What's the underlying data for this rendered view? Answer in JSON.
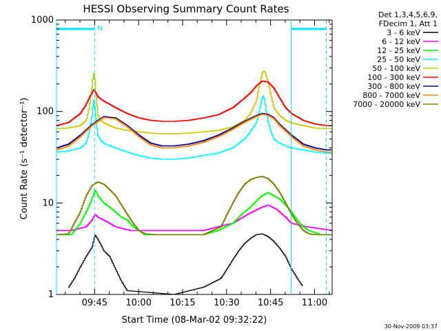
{
  "chart_data": {
    "type": "line",
    "title": "HESSI Observing Summary Count Rates",
    "xlabel": "Start Time (08-Mar-02 09:32:22)",
    "ylabel": "Count Rate (s⁻¹ detector⁻¹)",
    "yscale": "log",
    "ylim": [
      1,
      1000
    ],
    "xlim_minutes": [
      0,
      94
    ],
    "x_ticks": [
      {
        "t": 13,
        "label": "09:45"
      },
      {
        "t": 28,
        "label": "10:00"
      },
      {
        "t": 43,
        "label": "10:15"
      },
      {
        "t": 58,
        "label": "10:30"
      },
      {
        "t": 73,
        "label": "10:45"
      },
      {
        "t": 88,
        "label": "11:00"
      }
    ],
    "y_ticks": [
      {
        "v": 1,
        "label": "1"
      },
      {
        "v": 10,
        "label": "10"
      },
      {
        "v": 100,
        "label": "100"
      },
      {
        "v": 1000,
        "label": "1000"
      }
    ],
    "legend_position": "top-right, outside plot",
    "legend_header": [
      "Det 1,3,4,5,6,9,",
      "FDecim 1, Att 1"
    ],
    "series": [
      {
        "name": "3 - 6 keV",
        "color": "#000000",
        "x": [
          4,
          6,
          8,
          10,
          12,
          13,
          14,
          15,
          16,
          18,
          20,
          22,
          24,
          40,
          50,
          56,
          58,
          60,
          62,
          64,
          66,
          68,
          70,
          72,
          74,
          76,
          78,
          80,
          82,
          84
        ],
        "y": [
          1.2,
          1.5,
          2,
          2.6,
          3.3,
          4.5,
          4,
          3.5,
          3,
          2.6,
          1.9,
          1.4,
          1.1,
          1,
          1.2,
          1.5,
          1.9,
          2.4,
          3,
          3.6,
          4.1,
          4.5,
          4.6,
          4.3,
          3.8,
          3.2,
          2.6,
          1.9,
          1.5,
          1.2
        ]
      },
      {
        "name": "6 - 12 keV",
        "color": "#ff00ff",
        "x": [
          0,
          5,
          10,
          12,
          13,
          14,
          16,
          18,
          20,
          25,
          30,
          40,
          50,
          55,
          60,
          65,
          70,
          72,
          75,
          78,
          80,
          85,
          94
        ],
        "y": [
          5,
          5,
          5.5,
          6.5,
          7.5,
          7,
          6.5,
          6,
          5.5,
          5,
          5,
          5,
          5,
          5.5,
          6,
          7.5,
          9,
          9.5,
          8.5,
          7,
          6,
          5.5,
          5
        ]
      },
      {
        "name": "12 - 25 keV",
        "color": "#00ff00",
        "x": [
          0,
          5,
          8,
          10,
          12,
          13,
          14,
          16,
          18,
          20,
          22,
          24,
          26,
          28,
          30,
          40,
          50,
          55,
          60,
          63,
          66,
          68,
          70,
          72,
          74,
          76,
          78,
          80,
          82,
          84,
          86,
          90,
          94
        ],
        "y": [
          4.5,
          4.5,
          6,
          8,
          11,
          14,
          12,
          10,
          9,
          8,
          7,
          6.5,
          5.5,
          5,
          4.5,
          4.5,
          4.5,
          5,
          6,
          7.5,
          9,
          10.5,
          12,
          13,
          12,
          11,
          9.5,
          8,
          6.5,
          5.5,
          5,
          4.5,
          4.5
        ]
      },
      {
        "name": "25 - 50 keV",
        "color": "#00ffff",
        "x": [
          0,
          4,
          8,
          10,
          11,
          12,
          12.5,
          13,
          13.5,
          14,
          15,
          16,
          18,
          20,
          24,
          28,
          32,
          36,
          40,
          45,
          50,
          55,
          60,
          64,
          66,
          68,
          69,
          70,
          70.5,
          71,
          72,
          73,
          74,
          76,
          78,
          80,
          84,
          88,
          92,
          94
        ],
        "y": [
          36,
          37,
          40,
          45,
          60,
          90,
          140,
          110,
          70,
          55,
          48,
          45,
          42,
          40,
          36,
          33,
          31,
          30,
          30,
          31,
          33,
          35,
          40,
          50,
          60,
          75,
          100,
          140,
          150,
          120,
          80,
          60,
          50,
          45,
          42,
          40,
          38,
          36,
          35,
          35
        ]
      },
      {
        "name": "50 - 100 keV",
        "color": "#cccc00",
        "x": [
          0,
          4,
          8,
          10,
          11,
          12,
          12.5,
          13,
          13.5,
          14,
          15,
          16,
          18,
          20,
          24,
          28,
          32,
          36,
          40,
          45,
          50,
          55,
          60,
          64,
          66,
          68,
          69,
          70,
          70.5,
          71,
          72,
          73,
          74,
          76,
          78,
          80,
          84,
          88,
          92,
          94
        ],
        "y": [
          65,
          66,
          70,
          80,
          110,
          190,
          270,
          220,
          130,
          90,
          80,
          75,
          70,
          66,
          62,
          60,
          58,
          57,
          57,
          58,
          60,
          62,
          68,
          80,
          95,
          130,
          190,
          260,
          280,
          270,
          210,
          150,
          110,
          90,
          80,
          75,
          70,
          66,
          65,
          65
        ]
      },
      {
        "name": "100 - 300 keV",
        "color": "#ff0000",
        "x": [
          0,
          4,
          8,
          10,
          11,
          12,
          12.5,
          13,
          14,
          16,
          18,
          20,
          24,
          28,
          32,
          36,
          40,
          45,
          50,
          55,
          60,
          64,
          66,
          68,
          70,
          72,
          74,
          76,
          78,
          80,
          84,
          88,
          92,
          94
        ],
        "y": [
          70,
          76,
          95,
          120,
          140,
          160,
          175,
          165,
          145,
          130,
          120,
          110,
          95,
          85,
          80,
          78,
          78,
          80,
          85,
          92,
          110,
          140,
          160,
          190,
          215,
          210,
          180,
          140,
          110,
          95,
          80,
          73,
          70,
          70
        ]
      },
      {
        "name": "300 - 800 keV",
        "color": "#000099",
        "x": [
          0,
          4,
          8,
          12,
          16,
          20,
          24,
          28,
          32,
          36,
          40,
          45,
          50,
          55,
          60,
          64,
          68,
          70,
          72,
          74,
          76,
          80,
          84,
          88,
          92,
          94
        ],
        "y": [
          40,
          44,
          55,
          72,
          88,
          85,
          70,
          55,
          45,
          42,
          42,
          44,
          48,
          55,
          66,
          78,
          90,
          95,
          93,
          85,
          72,
          55,
          44,
          40,
          38,
          38
        ]
      },
      {
        "name": "800 - 7000 keV",
        "color": "#ff8800",
        "x": [
          0,
          4,
          8,
          12,
          16,
          20,
          24,
          28,
          32,
          36,
          40,
          45,
          50,
          55,
          60,
          64,
          68,
          70,
          72,
          74,
          76,
          80,
          84,
          88,
          92,
          94
        ],
        "y": [
          38,
          42,
          53,
          70,
          86,
          83,
          68,
          53,
          43,
          40,
          40,
          42,
          46,
          53,
          64,
          76,
          88,
          93,
          91,
          83,
          70,
          53,
          42,
          38,
          36,
          36
        ]
      },
      {
        "name": "7000 - 20000 keV",
        "color": "#808000",
        "x": [
          0,
          4,
          8,
          10,
          12,
          14,
          16,
          18,
          20,
          22,
          24,
          26,
          28,
          30,
          34,
          40,
          50,
          56,
          58,
          60,
          62,
          64,
          66,
          68,
          70,
          72,
          74,
          76,
          78,
          80,
          82,
          84,
          86,
          88,
          90,
          94
        ],
        "y": [
          4.5,
          4.6,
          8,
          12,
          15.5,
          17,
          16,
          14,
          12,
          9.5,
          7.5,
          6,
          5,
          4.6,
          4.5,
          4.5,
          4.5,
          5.5,
          7.5,
          10,
          13,
          16,
          18,
          19,
          19.5,
          18.5,
          16,
          13,
          10,
          7.5,
          6,
          5,
          4.6,
          4.5,
          4.5,
          4.5
        ]
      }
    ],
    "annotations": [
      {
        "label": "N",
        "t": 13,
        "kind": "night-segment"
      },
      {
        "label": "",
        "t": 0,
        "kind": "segment-start"
      },
      {
        "label": "",
        "t": 80,
        "kind": "segment-end"
      },
      {
        "label": "",
        "t": 92,
        "kind": "segment-end"
      }
    ],
    "segment_bars": [
      [
        0,
        13
      ],
      [
        80,
        92
      ]
    ],
    "footer_date": "30-Nov-2009 03:37"
  },
  "colors": {
    "background": "#ffffff",
    "axis": "#000000",
    "marker": "#00e5ff"
  }
}
